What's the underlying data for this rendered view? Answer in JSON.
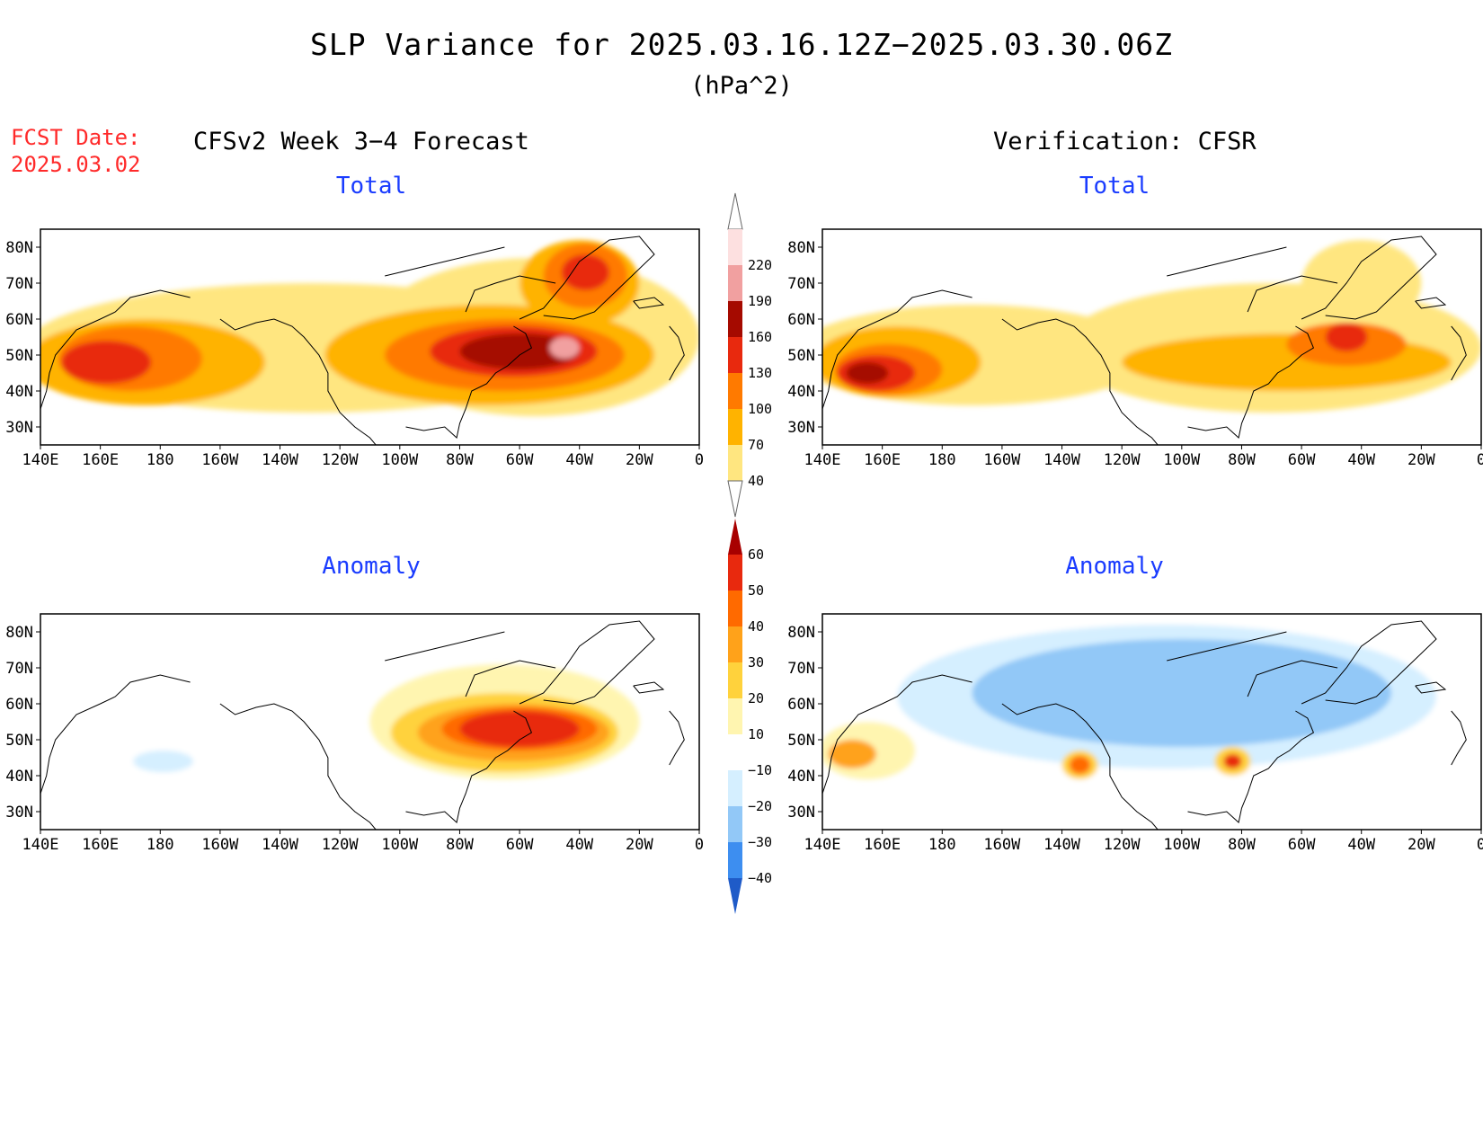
{
  "title": "SLP Variance for 2025.03.16.12Z−2025.03.30.06Z",
  "units": "(hPa^2)",
  "fcst_date_label": "FCST Date:",
  "fcst_date_value": "2025.03.02",
  "left_header": "CFSv2 Week 3−4 Forecast",
  "right_header": "Verification: CFSR",
  "panel_titles": {
    "top_left": "Total",
    "top_right": "Total",
    "bottom_left": "Anomaly",
    "bottom_right": "Anomaly"
  },
  "axes": {
    "lon_labels": [
      "140E",
      "160E",
      "180",
      "160W",
      "140W",
      "120W",
      "100W",
      "80W",
      "60W",
      "40W",
      "20W",
      "0"
    ],
    "lat_labels": [
      "80N",
      "70N",
      "60N",
      "50N",
      "40N",
      "30N"
    ]
  },
  "colorbars": {
    "total": {
      "levels": [
        "40",
        "70",
        "100",
        "130",
        "160",
        "190",
        "220"
      ],
      "colors": [
        "#ffe680",
        "#ffb300",
        "#ff7a00",
        "#e8290e",
        "#a50a00",
        "#f1a0a0",
        "#fde0e0"
      ]
    },
    "anomaly": {
      "levels": [
        "−40",
        "−30",
        "−20",
        "−10",
        "10",
        "20",
        "30",
        "40",
        "50",
        "60"
      ],
      "colors": [
        "#1f5bc8",
        "#3d8ef0",
        "#92c8f7",
        "#d5efff",
        "#ffffff",
        "#fff5b0",
        "#ffd23c",
        "#ffa21a",
        "#ff6a00",
        "#e8290e",
        "#a80000"
      ]
    }
  },
  "map_data": {
    "fields": {
      "top_left": [
        {
          "level": 40,
          "lon": 230,
          "lat": 52,
          "rlon": 95,
          "rlat": 18
        },
        {
          "level": 40,
          "lon": 305,
          "lat": 55,
          "rlon": 55,
          "rlat": 22
        },
        {
          "level": 70,
          "lon": 175,
          "lat": 48,
          "rlon": 40,
          "rlat": 12
        },
        {
          "level": 70,
          "lon": 290,
          "lat": 50,
          "rlon": 55,
          "rlat": 14
        },
        {
          "level": 70,
          "lon": 320,
          "lat": 70,
          "rlon": 20,
          "rlat": 12
        },
        {
          "level": 100,
          "lon": 170,
          "lat": 49,
          "rlon": 24,
          "rlat": 9
        },
        {
          "level": 100,
          "lon": 295,
          "lat": 50,
          "rlon": 40,
          "rlat": 10
        },
        {
          "level": 100,
          "lon": 322,
          "lat": 72,
          "rlon": 14,
          "rlat": 9
        },
        {
          "level": 130,
          "lon": 162,
          "lat": 48,
          "rlon": 15,
          "rlat": 6
        },
        {
          "level": 130,
          "lon": 298,
          "lat": 51,
          "rlon": 28,
          "rlat": 7
        },
        {
          "level": 130,
          "lon": 322,
          "lat": 73,
          "rlon": 8,
          "rlat": 5
        },
        {
          "level": 160,
          "lon": 300,
          "lat": 51,
          "rlon": 20,
          "rlat": 5
        },
        {
          "level": 190,
          "lon": 315,
          "lat": 52,
          "rlon": 5,
          "rlat": 3
        }
      ],
      "top_right": [
        {
          "level": 40,
          "lon": 190,
          "lat": 50,
          "rlon": 60,
          "rlat": 14
        },
        {
          "level": 40,
          "lon": 290,
          "lat": 52,
          "rlon": 70,
          "rlat": 18
        },
        {
          "level": 40,
          "lon": 320,
          "lat": 70,
          "rlon": 20,
          "rlat": 12
        },
        {
          "level": 70,
          "lon": 165,
          "lat": 48,
          "rlon": 28,
          "rlat": 10
        },
        {
          "level": 70,
          "lon": 295,
          "lat": 48,
          "rlon": 55,
          "rlat": 8
        },
        {
          "level": 100,
          "lon": 162,
          "lat": 46,
          "rlon": 18,
          "rlat": 7
        },
        {
          "level": 100,
          "lon": 315,
          "lat": 53,
          "rlon": 20,
          "rlat": 6
        },
        {
          "level": 130,
          "lon": 158,
          "lat": 45,
          "rlon": 13,
          "rlat": 5
        },
        {
          "level": 130,
          "lon": 315,
          "lat": 55,
          "rlon": 7,
          "rlat": 4
        },
        {
          "level": 160,
          "lon": 155,
          "lat": 45,
          "rlon": 7,
          "rlat": 3
        }
      ],
      "bottom_left": [
        {
          "level": 10,
          "lon": 295,
          "lat": 55,
          "rlon": 45,
          "rlat": 16
        },
        {
          "level": 20,
          "lon": 295,
          "lat": 52,
          "rlon": 38,
          "rlat": 11
        },
        {
          "level": 30,
          "lon": 298,
          "lat": 52,
          "rlon": 32,
          "rlat": 8
        },
        {
          "level": 40,
          "lon": 300,
          "lat": 53,
          "rlon": 26,
          "rlat": 6
        },
        {
          "level": 50,
          "lon": 300,
          "lat": 53,
          "rlon": 20,
          "rlat": 5
        },
        {
          "level": -10,
          "lon": 185,
          "lat": 48,
          "rlon": 25,
          "rlat": 7
        },
        {
          "level": -20,
          "lon": 181,
          "lat": 44,
          "rlon": 10,
          "rlat": 3
        }
      ],
      "bottom_right": [
        {
          "level": -10,
          "lon": 250,
          "lat": 62,
          "rlon": 110,
          "rlat": 25
        },
        {
          "level": -20,
          "lon": 255,
          "lat": 62,
          "rlon": 90,
          "rlat": 20
        },
        {
          "level": -30,
          "lon": 260,
          "lat": 63,
          "rlon": 70,
          "rlat": 15
        },
        {
          "level": 10,
          "lon": 155,
          "lat": 47,
          "rlon": 16,
          "rlat": 8
        },
        {
          "level": 30,
          "lon": 150,
          "lat": 46,
          "rlon": 8,
          "rlat": 4
        },
        {
          "level": 20,
          "lon": 226,
          "lat": 43,
          "rlon": 6,
          "rlat": 4
        },
        {
          "level": 40,
          "lon": 226,
          "lat": 43,
          "rlon": 3.5,
          "rlat": 2.5
        },
        {
          "level": 20,
          "lon": 277,
          "lat": 44,
          "rlon": 6,
          "rlat": 4
        },
        {
          "level": 50,
          "lon": 277,
          "lat": 44,
          "rlon": 3,
          "rlat": 2
        }
      ]
    }
  }
}
